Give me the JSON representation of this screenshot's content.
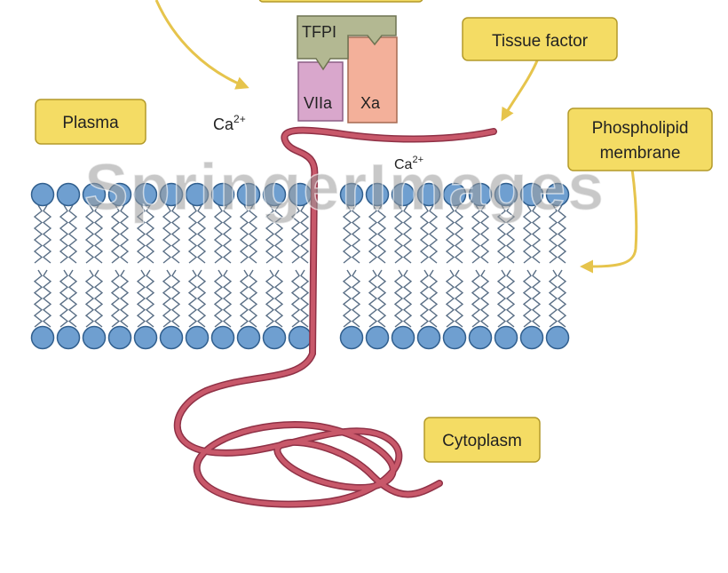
{
  "labels": {
    "plasma": "Plasma",
    "tissue_factor": "Tissue factor",
    "phospholipid_line1": "Phospholipid",
    "phospholipid_line2": "membrane",
    "cytoplasm": "Cytoplasm",
    "ca_left": "Ca",
    "ca_left_sup": "2+",
    "ca_right": "Ca",
    "ca_right_sup": "2+",
    "tfpi": "TFPI",
    "viia": "VIIa",
    "xa": "Xa"
  },
  "watermark": "SpringerImages",
  "colors": {
    "label_fill": "#f4dc64",
    "protein_strand": "#c8586a",
    "tfpi": "#b3b892",
    "viia": "#d9a7cc",
    "xa": "#f3b09a",
    "lipid_head": "#6f9fd0"
  }
}
